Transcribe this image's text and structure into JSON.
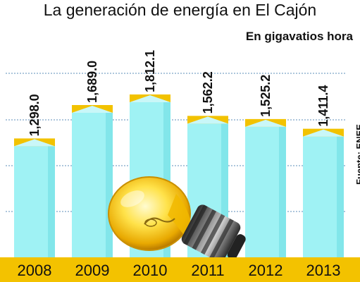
{
  "chart_data": {
    "type": "bar",
    "title": "La generación de energía en El Cajón",
    "subtitle": "En gigavatios hora",
    "categories": [
      "2008",
      "2009",
      "2010",
      "2011",
      "2012",
      "2013"
    ],
    "values": [
      1298.0,
      1689.0,
      1812.1,
      1562.2,
      1525.2,
      1411.4
    ],
    "value_labels": [
      "1,298.0",
      "1,689.0",
      "1,812.1",
      "1,562.2",
      "1,525.2",
      "1,411.4"
    ],
    "source": "Fuente: ENEE",
    "grid": true,
    "legend": "none",
    "colors": {
      "bar_front": "#9ff2f4",
      "bar_side": "#6fdde2",
      "bar_cap": "#f2c200",
      "base_band": "#f3c200",
      "grid": "#5b8db8"
    }
  },
  "illustration": {
    "name": "light-bulb"
  }
}
